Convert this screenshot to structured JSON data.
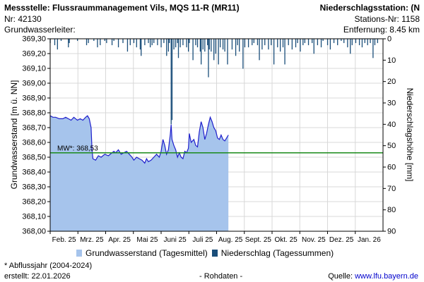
{
  "header": {
    "station_title": "Messstelle: Flussraummanagement Vils, MQS 11-R (MR11)",
    "station_nr": "Nr: 42130",
    "aquifer": "Grundwasserleiter:",
    "precip_station": "Niederschlagsstation: (N",
    "precip_station_nr": "Stations-Nr: 1158",
    "distance": "Entfernung: 8.45 km"
  },
  "footer": {
    "note": "* Abflussjahr (2004-2024)",
    "created": "erstellt:  22.01.2026",
    "raw": "- Rohdaten -",
    "source_label": "Quelle: ",
    "source_link": "www.lfu.bayern.de"
  },
  "colors": {
    "area": "#a6c4ec",
    "line": "#1f1fcc",
    "mw": "#1a8a1a",
    "bars": "#1a4e7a"
  },
  "chart_data": {
    "type": "area",
    "ylabel": "Grundwasserstand [m ü. NN]",
    "ylabel_right": "Niederschlagshöhe [mm]",
    "ylim": [
      368.0,
      369.3
    ],
    "ylim_right": [
      0,
      90
    ],
    "right_axis_inverted": true,
    "y_ticks": [
      "368,00",
      "368,10",
      "368,20",
      "368,30",
      "368,40",
      "368,50",
      "368,60",
      "368,70",
      "368,80",
      "368,90",
      "369,00",
      "369,10",
      "369,20",
      "369,30"
    ],
    "y_right_ticks": [
      "0",
      "10",
      "20",
      "30",
      "40",
      "50",
      "60",
      "70",
      "80",
      "90"
    ],
    "x_ticks": [
      "Feb. 25",
      "Mrz. 25",
      "Apr. 25",
      "Mai 25",
      "Juni 25",
      "Juli 25",
      "Aug. 25",
      "Sept. 25",
      "Okt. 25",
      "Nov. 25",
      "Dez. 25",
      "Jan. 26"
    ],
    "x_range_days": [
      0,
      366
    ],
    "mw_label": "MW*: 368,53",
    "mw_value": 368.53,
    "legend": {
      "groundwater": "Grundwasserstand (Tagesmittel)",
      "precip": "Niederschlag (Tagessummen)"
    },
    "series": [
      {
        "name": "Grundwasserstand (Tagesmittel)",
        "points": [
          [
            0,
            368.78
          ],
          [
            3,
            368.77
          ],
          [
            6,
            368.77
          ],
          [
            10,
            368.76
          ],
          [
            14,
            368.76
          ],
          [
            17,
            368.77
          ],
          [
            20,
            368.76
          ],
          [
            23,
            368.75
          ],
          [
            26,
            368.77
          ],
          [
            28,
            368.76
          ],
          [
            30,
            368.75
          ],
          [
            33,
            368.76
          ],
          [
            36,
            368.75
          ],
          [
            39,
            368.77
          ],
          [
            41,
            368.78
          ],
          [
            43,
            368.76
          ],
          [
            45,
            368.7
          ],
          [
            46,
            368.55
          ],
          [
            47,
            368.49
          ],
          [
            50,
            368.48
          ],
          [
            53,
            368.51
          ],
          [
            56,
            368.5
          ],
          [
            60,
            368.52
          ],
          [
            64,
            368.51
          ],
          [
            68,
            368.53
          ],
          [
            70,
            368.54
          ],
          [
            72,
            368.53
          ],
          [
            75,
            368.55
          ],
          [
            78,
            368.52
          ],
          [
            81,
            368.53
          ],
          [
            84,
            368.54
          ],
          [
            87,
            368.52
          ],
          [
            90,
            368.5
          ],
          [
            92,
            368.48
          ],
          [
            95,
            368.5
          ],
          [
            98,
            368.49
          ],
          [
            101,
            368.48
          ],
          [
            104,
            368.46
          ],
          [
            106,
            368.49
          ],
          [
            108,
            368.47
          ],
          [
            111,
            368.48
          ],
          [
            114,
            368.5
          ],
          [
            117,
            368.52
          ],
          [
            120,
            368.5
          ],
          [
            122,
            368.54
          ],
          [
            124,
            368.62
          ],
          [
            126,
            368.58
          ],
          [
            128,
            368.52
          ],
          [
            130,
            368.55
          ],
          [
            132,
            368.65
          ],
          [
            133,
            368.72
          ],
          [
            134,
            368.62
          ],
          [
            136,
            368.58
          ],
          [
            138,
            368.55
          ],
          [
            140,
            368.5
          ],
          [
            142,
            368.53
          ],
          [
            144,
            368.5
          ],
          [
            146,
            368.49
          ],
          [
            148,
            368.54
          ],
          [
            150,
            368.53
          ],
          [
            152,
            368.56
          ],
          [
            153,
            368.66
          ],
          [
            155,
            368.6
          ],
          [
            158,
            368.62
          ],
          [
            160,
            368.58
          ],
          [
            162,
            368.57
          ],
          [
            164,
            368.67
          ],
          [
            166,
            368.74
          ],
          [
            168,
            368.7
          ],
          [
            170,
            368.62
          ],
          [
            172,
            368.66
          ],
          [
            174,
            368.72
          ],
          [
            176,
            368.77
          ],
          [
            178,
            368.74
          ],
          [
            180,
            368.7
          ],
          [
            182,
            368.68
          ],
          [
            184,
            368.63
          ],
          [
            186,
            368.62
          ],
          [
            188,
            368.65
          ],
          [
            190,
            368.62
          ],
          [
            192,
            368.61
          ],
          [
            194,
            368.63
          ],
          [
            196,
            368.65
          ]
        ]
      }
    ],
    "precip": [
      [
        0,
        2
      ],
      [
        5,
        3
      ],
      [
        8,
        5
      ],
      [
        12,
        1
      ],
      [
        20,
        4
      ],
      [
        21,
        2
      ],
      [
        30,
        1
      ],
      [
        40,
        3
      ],
      [
        42,
        2
      ],
      [
        48,
        1
      ],
      [
        52,
        4
      ],
      [
        55,
        3
      ],
      [
        60,
        1
      ],
      [
        62,
        2
      ],
      [
        68,
        3
      ],
      [
        70,
        1
      ],
      [
        75,
        4
      ],
      [
        80,
        2
      ],
      [
        85,
        6
      ],
      [
        88,
        3
      ],
      [
        92,
        2
      ],
      [
        95,
        4
      ],
      [
        99,
        5
      ],
      [
        100,
        8
      ],
      [
        104,
        3
      ],
      [
        108,
        2
      ],
      [
        110,
        4
      ],
      [
        112,
        3
      ],
      [
        114,
        2
      ],
      [
        118,
        3
      ],
      [
        122,
        4
      ],
      [
        125,
        2
      ],
      [
        128,
        8
      ],
      [
        130,
        6
      ],
      [
        131,
        2
      ],
      [
        133,
        40
      ],
      [
        134,
        38
      ],
      [
        136,
        5
      ],
      [
        138,
        4
      ],
      [
        140,
        2
      ],
      [
        141,
        9
      ],
      [
        143,
        4
      ],
      [
        146,
        3
      ],
      [
        150,
        4
      ],
      [
        152,
        6
      ],
      [
        153,
        2
      ],
      [
        157,
        10
      ],
      [
        160,
        3
      ],
      [
        162,
        4
      ],
      [
        165,
        6
      ],
      [
        166,
        12
      ],
      [
        168,
        5
      ],
      [
        170,
        6
      ],
      [
        173,
        3
      ],
      [
        174,
        18
      ],
      [
        175,
        5
      ],
      [
        177,
        6
      ],
      [
        180,
        10
      ],
      [
        182,
        7
      ],
      [
        185,
        12
      ],
      [
        187,
        4
      ],
      [
        190,
        5
      ],
      [
        192,
        6
      ],
      [
        195,
        12
      ],
      [
        200,
        5
      ],
      [
        204,
        8
      ],
      [
        206,
        3
      ],
      [
        208,
        6
      ],
      [
        212,
        14
      ],
      [
        214,
        4
      ],
      [
        218,
        4
      ],
      [
        222,
        3
      ],
      [
        224,
        2
      ],
      [
        228,
        3
      ],
      [
        230,
        10
      ],
      [
        233,
        5
      ],
      [
        236,
        3
      ],
      [
        240,
        5
      ],
      [
        243,
        3
      ],
      [
        246,
        12
      ],
      [
        250,
        4
      ],
      [
        253,
        6
      ],
      [
        256,
        4
      ],
      [
        258,
        12
      ],
      [
        262,
        3
      ],
      [
        266,
        5
      ],
      [
        270,
        4
      ],
      [
        272,
        2
      ],
      [
        275,
        6
      ],
      [
        278,
        3
      ],
      [
        280,
        2
      ],
      [
        284,
        3
      ],
      [
        288,
        2
      ],
      [
        290,
        7
      ],
      [
        294,
        3
      ],
      [
        298,
        4
      ],
      [
        300,
        1
      ],
      [
        305,
        3
      ],
      [
        308,
        5
      ],
      [
        312,
        2
      ],
      [
        316,
        3
      ],
      [
        320,
        1
      ],
      [
        323,
        2
      ],
      [
        327,
        4
      ],
      [
        330,
        7
      ],
      [
        332,
        3
      ],
      [
        336,
        2
      ],
      [
        340,
        3
      ],
      [
        343,
        4
      ],
      [
        346,
        2
      ],
      [
        349,
        3
      ],
      [
        352,
        2
      ],
      [
        355,
        9
      ],
      [
        357,
        3
      ],
      [
        360,
        2
      ]
    ]
  }
}
